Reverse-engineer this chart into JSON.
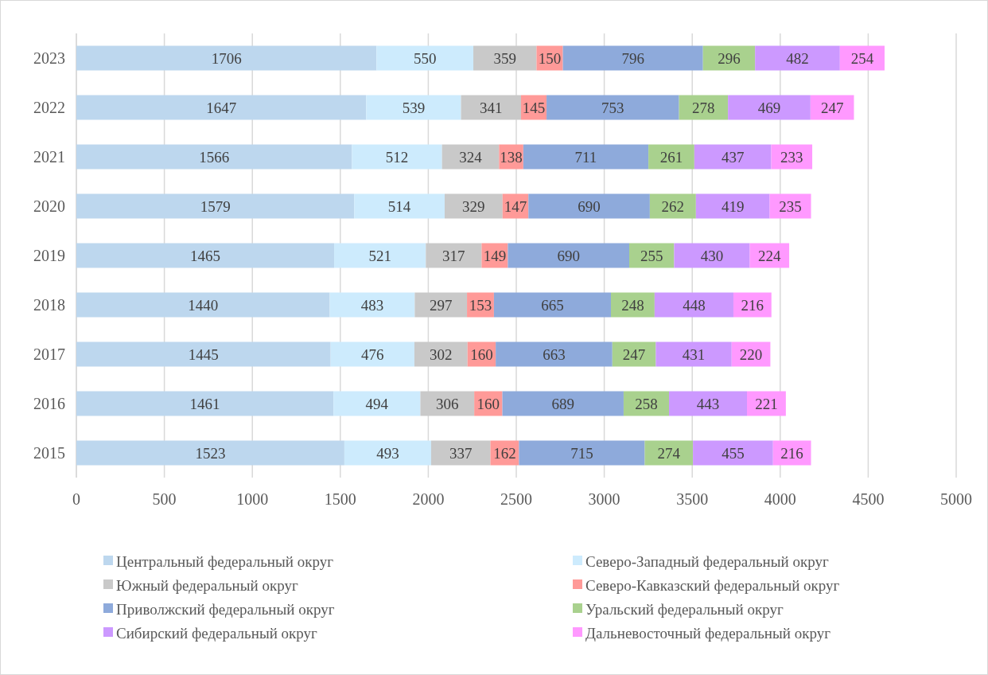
{
  "chart_data": {
    "type": "bar",
    "orientation": "horizontal",
    "stacked": true,
    "data_labels": true,
    "grid": "x",
    "legend": "bottom",
    "categories": [
      "2023",
      "2022",
      "2021",
      "2020",
      "2019",
      "2018",
      "2017",
      "2016",
      "2015"
    ],
    "xlim": [
      0,
      5000
    ],
    "xticks": [
      0,
      500,
      1000,
      1500,
      2000,
      2500,
      3000,
      3500,
      4000,
      4500,
      5000
    ],
    "series": [
      {
        "name": "Центральный федеральный округ",
        "color": "#bdd7ee",
        "values": [
          1706,
          1647,
          1566,
          1579,
          1465,
          1440,
          1445,
          1461,
          1523
        ]
      },
      {
        "name": "Северо-Западный федеральный округ",
        "color": "#cdebfd",
        "values": [
          550,
          539,
          512,
          514,
          521,
          483,
          476,
          494,
          493
        ]
      },
      {
        "name": "Южный федеральный округ",
        "color": "#c9c9c9",
        "values": [
          359,
          341,
          324,
          329,
          317,
          297,
          302,
          306,
          337
        ]
      },
      {
        "name": "Северо-Кавказский федеральный округ",
        "color": "#ff9a98",
        "values": [
          150,
          145,
          138,
          147,
          149,
          153,
          160,
          160,
          162
        ]
      },
      {
        "name": "Приволжский федеральный округ",
        "color": "#8eaadb",
        "values": [
          796,
          753,
          711,
          690,
          690,
          665,
          663,
          689,
          715
        ]
      },
      {
        "name": "Уральский федеральный округ",
        "color": "#a9d18e",
        "values": [
          296,
          278,
          261,
          262,
          255,
          248,
          247,
          258,
          274
        ]
      },
      {
        "name": "Сибирский федеральный округ",
        "color": "#cc99ff",
        "values": [
          482,
          469,
          437,
          419,
          430,
          448,
          431,
          443,
          455
        ]
      },
      {
        "name": "Дальневосточный федеральный округ",
        "color": "#ff99ff",
        "values": [
          254,
          247,
          233,
          235,
          224,
          216,
          220,
          221,
          216
        ]
      }
    ]
  }
}
